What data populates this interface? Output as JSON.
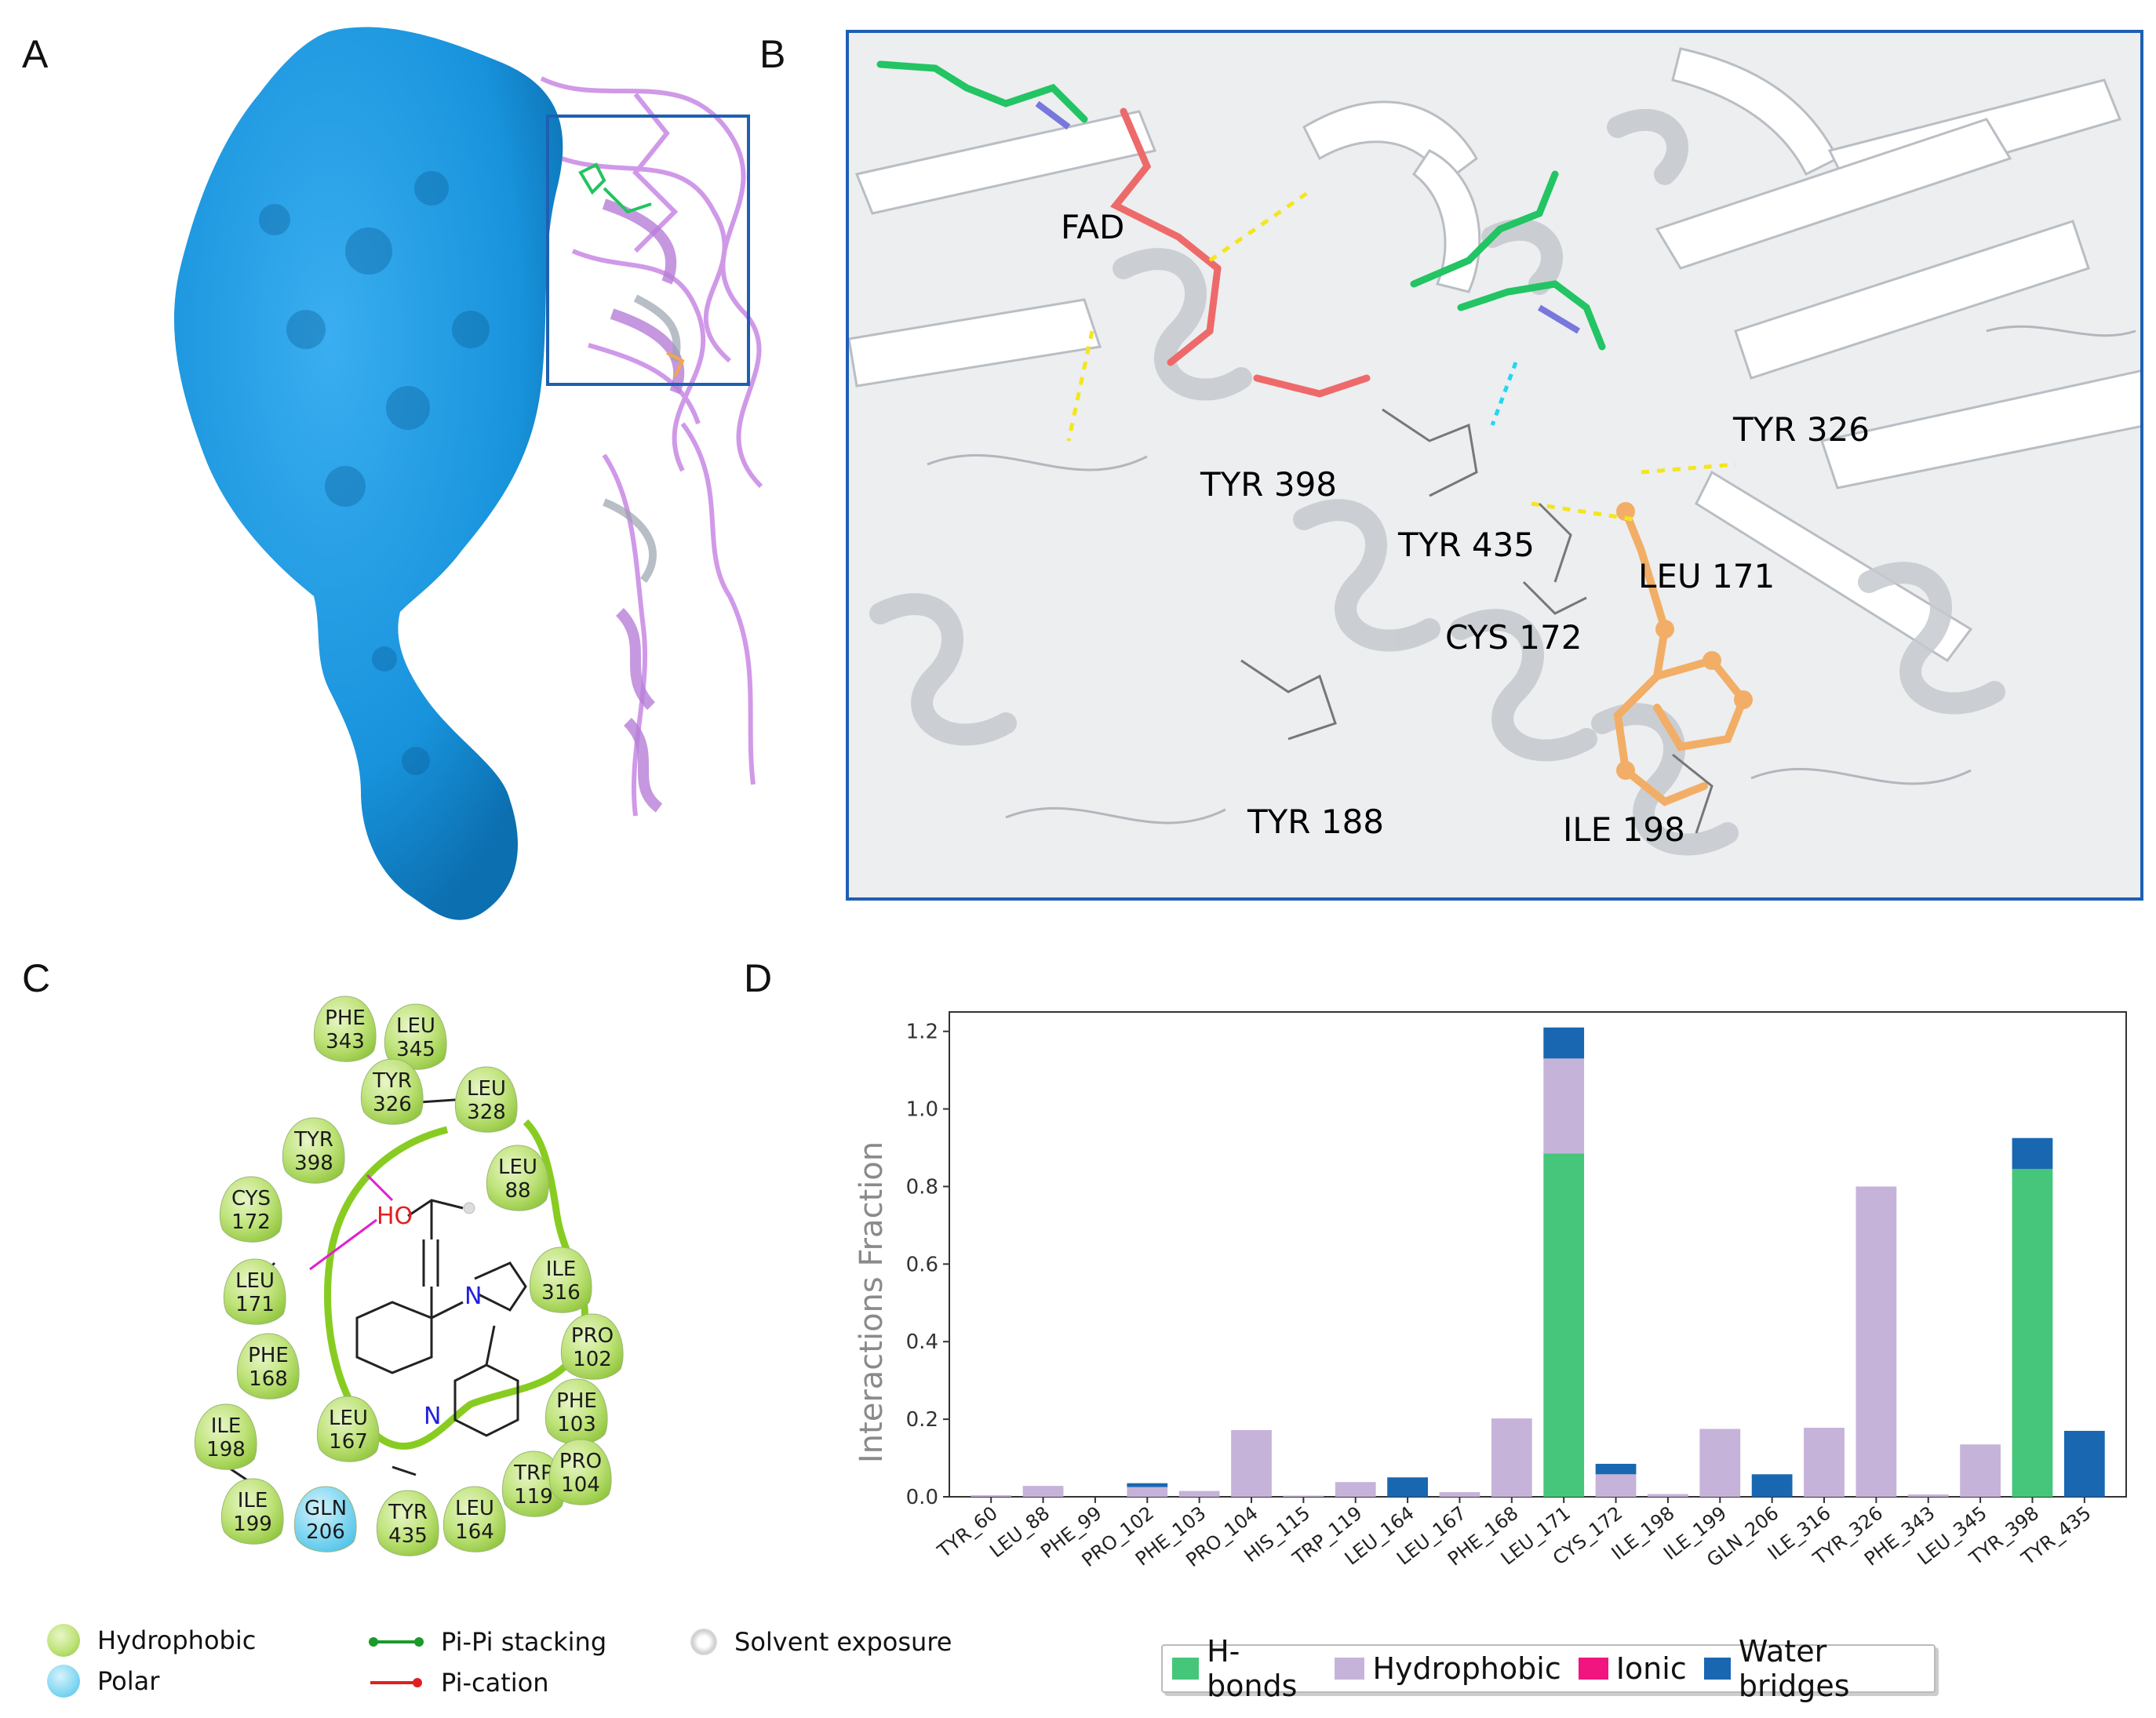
{
  "panels": {
    "a": "A",
    "b": "B",
    "c": "C",
    "d": "D"
  },
  "panel_b_labels": {
    "fad": "FAD",
    "tyr326": "TYR  326",
    "tyr398": "TYR  398",
    "tyr435": "TYR  435",
    "leu171": "LEU  171",
    "cys172": "CYS  172",
    "tyr188": "TYR  188",
    "ile198": "ILE  198"
  },
  "residues": [
    {
      "name": "PHE",
      "num": "343",
      "type": "hydrophobic"
    },
    {
      "name": "LEU",
      "num": "345",
      "type": "hydrophobic"
    },
    {
      "name": "TYR",
      "num": "326",
      "type": "hydrophobic"
    },
    {
      "name": "LEU",
      "num": "328",
      "type": "hydrophobic"
    },
    {
      "name": "TYR",
      "num": "398",
      "type": "hydrophobic"
    },
    {
      "name": "LEU",
      "num": "88",
      "type": "hydrophobic"
    },
    {
      "name": "CYS",
      "num": "172",
      "type": "hydrophobic"
    },
    {
      "name": "ILE",
      "num": "316",
      "type": "hydrophobic"
    },
    {
      "name": "LEU",
      "num": "171",
      "type": "hydrophobic"
    },
    {
      "name": "PRO",
      "num": "102",
      "type": "hydrophobic"
    },
    {
      "name": "PHE",
      "num": "168",
      "type": "hydrophobic"
    },
    {
      "name": "PHE",
      "num": "103",
      "type": "hydrophobic"
    },
    {
      "name": "ILE",
      "num": "198",
      "type": "hydrophobic"
    },
    {
      "name": "LEU",
      "num": "167",
      "type": "hydrophobic"
    },
    {
      "name": "TRP",
      "num": "119",
      "type": "hydrophobic"
    },
    {
      "name": "PRO",
      "num": "104",
      "type": "hydrophobic"
    },
    {
      "name": "ILE",
      "num": "199",
      "type": "hydrophobic"
    },
    {
      "name": "GLN",
      "num": "206",
      "type": "polar"
    },
    {
      "name": "TYR",
      "num": "435",
      "type": "hydrophobic"
    },
    {
      "name": "LEU",
      "num": "164",
      "type": "hydrophobic"
    }
  ],
  "ligand_labels": {
    "ho": "HO",
    "n1": "N",
    "n2": "N"
  },
  "legend_c": {
    "hydrophobic": "Hydrophobic",
    "polar": "Polar",
    "pipi": "Pi-Pi stacking",
    "pication": "Pi-cation",
    "solvent": "Solvent exposure"
  },
  "chart_data": {
    "type": "bar",
    "stacked": true,
    "ylabel": "Interactions Fraction",
    "ylim": [
      0,
      1.25
    ],
    "yticks": [
      0.0,
      0.2,
      0.4,
      0.6,
      0.8,
      1.0,
      1.2
    ],
    "categories": [
      "TYR_60",
      "LEU_88",
      "PHE_99",
      "PRO_102",
      "PHE_103",
      "PRO_104",
      "HIS_115",
      "TRP_119",
      "LEU_164",
      "LEU_167",
      "PHE_168",
      "LEU_171",
      "CYS_172",
      "ILE_198",
      "ILE_199",
      "GLN_206",
      "ILE_316",
      "TYR_326",
      "PHE_343",
      "LEU_345",
      "TYR_398",
      "TYR_435"
    ],
    "series": [
      {
        "name": "H-bonds",
        "color": "#45c67a",
        "values": [
          0,
          0,
          0,
          0,
          0,
          0,
          0,
          0,
          0,
          0,
          0,
          0.885,
          0,
          0,
          0,
          0,
          0,
          0,
          0,
          0,
          0.845,
          0
        ]
      },
      {
        "name": "Hydrophobic",
        "color": "#c6b3d9",
        "values": [
          0.004,
          0.028,
          0,
          0.025,
          0.015,
          0.172,
          0.003,
          0.038,
          0,
          0.012,
          0.202,
          0.245,
          0.058,
          0.007,
          0.175,
          0,
          0.178,
          0.8,
          0.006,
          0.135,
          0,
          0
        ]
      },
      {
        "name": "Ionic",
        "color": "#f0157f",
        "values": [
          0,
          0,
          0,
          0,
          0,
          0,
          0,
          0,
          0,
          0,
          0,
          0,
          0,
          0,
          0,
          0,
          0,
          0,
          0,
          0,
          0,
          0
        ]
      },
      {
        "name": "Water bridges",
        "color": "#1a67b1",
        "values": [
          0,
          0,
          0,
          0.01,
          0,
          0,
          0,
          0,
          0.05,
          0,
          0,
          0.08,
          0.027,
          0,
          0,
          0.058,
          0,
          0,
          0,
          0,
          0.08,
          0.17
        ]
      }
    ],
    "legend_position": "bottom"
  }
}
